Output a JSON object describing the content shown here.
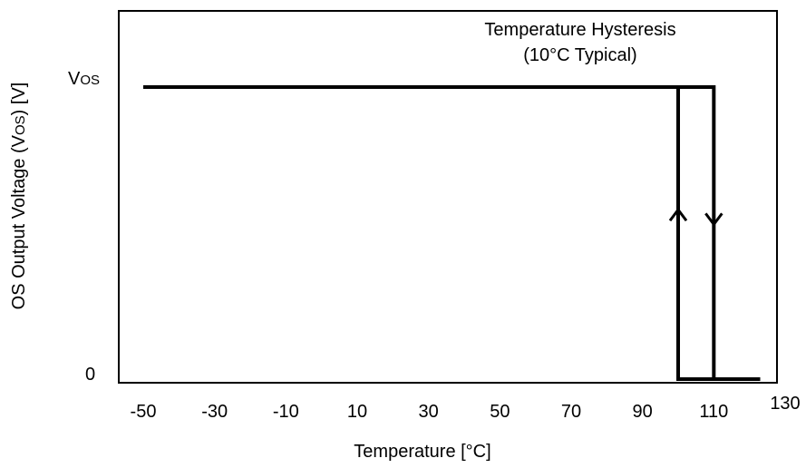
{
  "chart_data": {
    "type": "line",
    "xlabel": "Temperature [°C]",
    "ylabel": "OS Output Voltage (V",
    "ylabel_sub": "OS",
    "ylabel_end": ") [V]",
    "xlim": [
      -50,
      130
    ],
    "x_ticks": [
      "-50",
      "-30",
      "-10",
      "10",
      "30",
      "50",
      "70",
      "90",
      "110",
      "130"
    ],
    "y_ticks": [
      {
        "value": 1,
        "label": "V",
        "sub": "OS"
      },
      {
        "value": 0,
        "label": "0",
        "sub": ""
      }
    ],
    "annotation": [
      "Temperature Hysteresis",
      "(10°C Typical)"
    ],
    "series": [
      {
        "x": [
          -50,
          100,
          100,
          123
        ],
        "y": [
          1,
          1,
          0,
          0
        ]
      },
      {
        "x": [
          100,
          110,
          110,
          123
        ],
        "y": [
          1,
          1,
          0,
          0
        ]
      }
    ],
    "arrows": [
      {
        "x": 100,
        "direction": "up",
        "y": 0.58
      },
      {
        "x": 110,
        "direction": "down",
        "y": 0.53
      }
    ],
    "grid": false,
    "line_color": "#000000"
  }
}
